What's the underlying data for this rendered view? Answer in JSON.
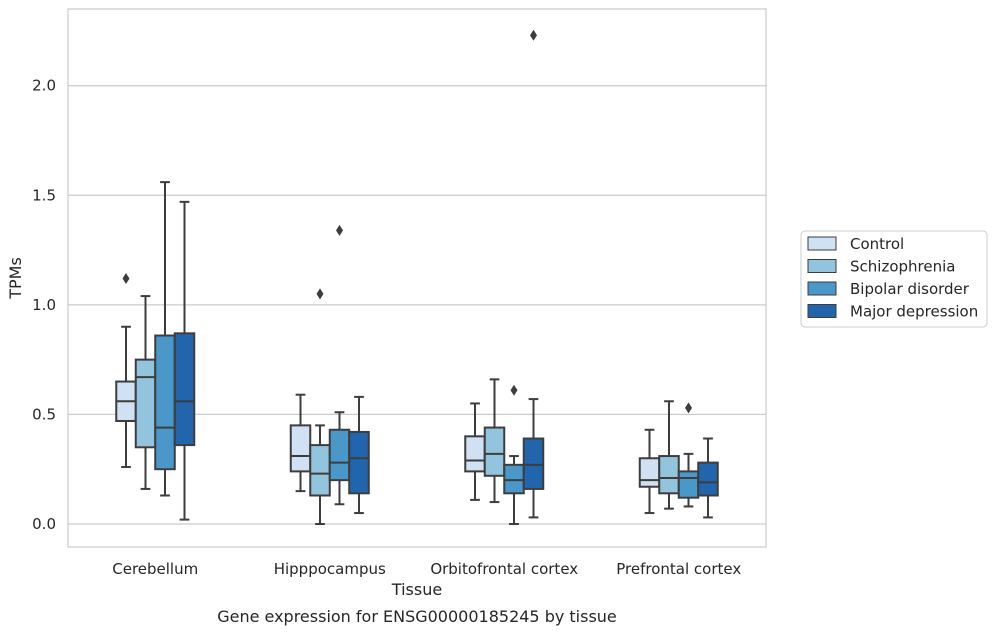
{
  "chart_data": {
    "type": "box",
    "xlabel": "Tissue",
    "ylabel": "TPMs",
    "caption": "Gene expression for ENSG00000185245 by tissue",
    "ylim": [
      -0.105,
      2.35
    ],
    "yticks": [
      0.0,
      0.5,
      1.0,
      1.5,
      2.0
    ],
    "ytick_labels": [
      "0.0",
      "0.5",
      "1.0",
      "1.5",
      "2.0"
    ],
    "grid": "horizontal",
    "legend_placement": "right",
    "categories": [
      "Cerebellum",
      "Hipppocampus",
      "Orbitofrontal cortex",
      "Prefrontal cortex"
    ],
    "series": [
      {
        "name": "Control",
        "color": "#cfe1f2",
        "boxes": [
          {
            "min": 0.26,
            "q1": 0.47,
            "median": 0.56,
            "q3": 0.65,
            "max": 0.9,
            "outliers": [
              1.12
            ]
          },
          {
            "min": 0.15,
            "q1": 0.24,
            "median": 0.31,
            "q3": 0.45,
            "max": 0.59,
            "outliers": []
          },
          {
            "min": 0.11,
            "q1": 0.24,
            "median": 0.29,
            "q3": 0.4,
            "max": 0.55,
            "outliers": []
          },
          {
            "min": 0.05,
            "q1": 0.17,
            "median": 0.2,
            "q3": 0.3,
            "max": 0.43,
            "outliers": []
          }
        ]
      },
      {
        "name": "Schizophrenia",
        "color": "#93c4de",
        "boxes": [
          {
            "min": 0.16,
            "q1": 0.35,
            "median": 0.67,
            "q3": 0.75,
            "max": 1.04,
            "outliers": []
          },
          {
            "min": 0.0,
            "q1": 0.13,
            "median": 0.23,
            "q3": 0.36,
            "max": 0.45,
            "outliers": [
              1.05
            ]
          },
          {
            "min": 0.1,
            "q1": 0.22,
            "median": 0.32,
            "q3": 0.44,
            "max": 0.66,
            "outliers": []
          },
          {
            "min": 0.07,
            "q1": 0.14,
            "median": 0.21,
            "q3": 0.31,
            "max": 0.56,
            "outliers": []
          }
        ]
      },
      {
        "name": "Bipolar disorder",
        "color": "#4a98c9",
        "boxes": [
          {
            "min": 0.13,
            "q1": 0.25,
            "median": 0.44,
            "q3": 0.86,
            "max": 1.56,
            "outliers": []
          },
          {
            "min": 0.09,
            "q1": 0.2,
            "median": 0.28,
            "q3": 0.43,
            "max": 0.51,
            "outliers": [
              1.34
            ]
          },
          {
            "min": 0.0,
            "q1": 0.14,
            "median": 0.2,
            "q3": 0.27,
            "max": 0.31,
            "outliers": [
              0.61
            ]
          },
          {
            "min": 0.08,
            "q1": 0.12,
            "median": 0.21,
            "q3": 0.24,
            "max": 0.32,
            "outliers": [
              0.53
            ]
          }
        ]
      },
      {
        "name": "Major depression",
        "color": "#2166ac",
        "boxes": [
          {
            "min": 0.02,
            "q1": 0.36,
            "median": 0.56,
            "q3": 0.87,
            "max": 1.47,
            "outliers": []
          },
          {
            "min": 0.05,
            "q1": 0.14,
            "median": 0.3,
            "q3": 0.42,
            "max": 0.58,
            "outliers": []
          },
          {
            "min": 0.03,
            "q1": 0.16,
            "median": 0.27,
            "q3": 0.39,
            "max": 0.57,
            "outliers": [
              2.23
            ]
          },
          {
            "min": 0.03,
            "q1": 0.13,
            "median": 0.19,
            "q3": 0.28,
            "max": 0.39,
            "outliers": []
          }
        ]
      }
    ]
  }
}
